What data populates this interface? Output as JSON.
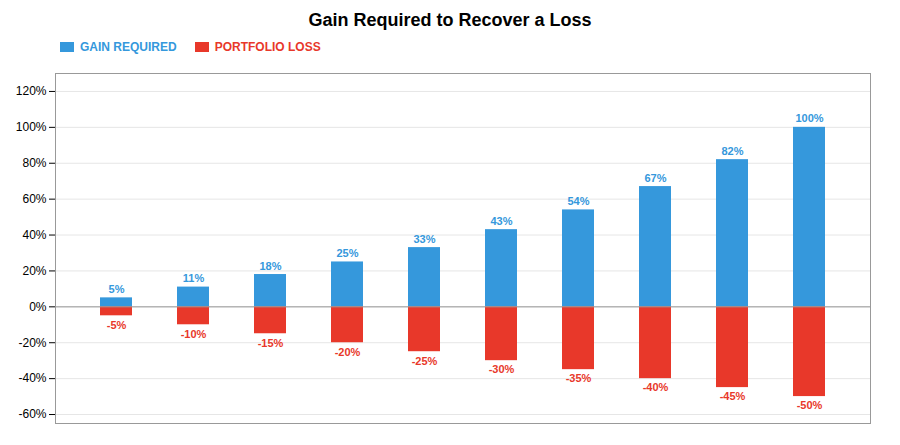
{
  "chart_data": {
    "type": "bar",
    "title": "Gain Required to Recover a Loss",
    "categories": [
      null,
      null,
      null,
      null,
      null,
      null,
      null,
      null,
      null,
      null
    ],
    "series": [
      {
        "name": "GAIN REQUIRED",
        "color": "#3598DC",
        "values": [
          5,
          11,
          18,
          25,
          33,
          43,
          54,
          67,
          82,
          100
        ],
        "value_labels": [
          "5%",
          "11%",
          "18%",
          "25%",
          "33%",
          "43%",
          "54%",
          "67%",
          "82%",
          "100%"
        ]
      },
      {
        "name": "PORTFOLIO LOSS",
        "color": "#E8382A",
        "values": [
          -5,
          -10,
          -15,
          -20,
          -25,
          -30,
          -35,
          -40,
          -45,
          -50
        ],
        "value_labels": [
          "-5%",
          "-10%",
          "-15%",
          "-20%",
          "-25%",
          "-30%",
          "-35%",
          "-40%",
          "-45%",
          "-50%"
        ]
      }
    ],
    "ylim": [
      -65,
      130
    ],
    "yticks": [
      {
        "value": -60,
        "label": "-60%"
      },
      {
        "value": -40,
        "label": "-40%"
      },
      {
        "value": -20,
        "label": "-20%"
      },
      {
        "value": 0,
        "label": "0%"
      },
      {
        "value": 20,
        "label": "20%"
      },
      {
        "value": 40,
        "label": "40%"
      },
      {
        "value": 60,
        "label": "60%"
      },
      {
        "value": 80,
        "label": "80%"
      },
      {
        "value": 100,
        "label": "100%"
      },
      {
        "value": 120,
        "label": "120%"
      }
    ],
    "grid": true,
    "legend": "upper left",
    "data_labels": true,
    "tick_labels": "y"
  }
}
